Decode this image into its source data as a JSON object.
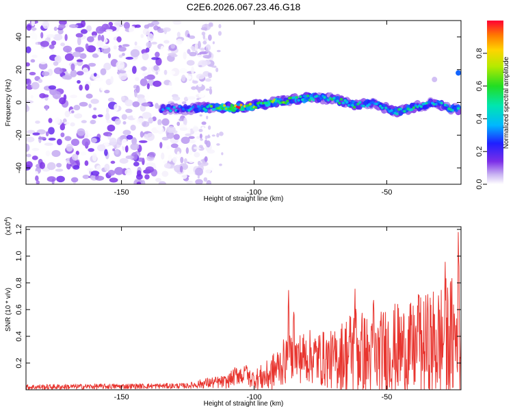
{
  "title": "C2E6.2026.067.23.46.G18",
  "chart_data": [
    {
      "type": "heatmap",
      "xlabel": "Height of straight line (km)",
      "ylabel": "Frequency (Hz)",
      "xlim": [
        -186,
        -22
      ],
      "ylim": [
        -50,
        50
      ],
      "xticks": [
        -150,
        -100,
        -50
      ],
      "yticks": [
        -40,
        -20,
        0,
        20,
        40
      ],
      "colorbar": {
        "label": "Normalized spectral amplitude",
        "range": [
          0,
          1
        ],
        "ticks": [
          "0.0",
          "0.2",
          "0.4",
          "0.6",
          "0.8"
        ],
        "tick_values": [
          0,
          0.2,
          0.4,
          0.6,
          0.8
        ]
      },
      "noise_region_x": [
        -186,
        -120
      ],
      "signal_track": [
        {
          "x": -135,
          "f": -4,
          "amp": 0.35
        },
        {
          "x": -125,
          "f": -4,
          "amp": 0.4
        },
        {
          "x": -115,
          "f": -3,
          "amp": 0.6
        },
        {
          "x": -108,
          "f": -3,
          "amp": 0.95
        },
        {
          "x": -100,
          "f": -2,
          "amp": 0.75
        },
        {
          "x": -92,
          "f": 0,
          "amp": 0.65
        },
        {
          "x": -85,
          "f": 2,
          "amp": 0.6
        },
        {
          "x": -78,
          "f": 3,
          "amp": 0.55
        },
        {
          "x": -70,
          "f": 2,
          "amp": 0.5
        },
        {
          "x": -62,
          "f": -2,
          "amp": 0.55
        },
        {
          "x": -55,
          "f": 0,
          "amp": 0.4
        },
        {
          "x": -47,
          "f": -6,
          "amp": 0.55
        },
        {
          "x": -40,
          "f": -3,
          "amp": 0.5
        },
        {
          "x": -32,
          "f": 0,
          "amp": 0.45
        },
        {
          "x": -25,
          "f": -4,
          "amp": 0.5
        }
      ],
      "extra_features": [
        {
          "x": -23,
          "f": 18,
          "amp": 0.3
        },
        {
          "x": -32,
          "f": 14,
          "amp": 0.05
        }
      ]
    },
    {
      "type": "line",
      "xlabel": "Height of straight line (km)",
      "ylabel": "SNR (10 * v/v)",
      "multiplier": "(x10",
      "multiplier_exp": "4",
      "multiplier_close": ")",
      "xlim": [
        -186,
        -22
      ],
      "ylim": [
        0,
        1.22
      ],
      "xticks": [
        -150,
        -100,
        -50
      ],
      "yticks": [
        "0.2",
        "0.4",
        "0.6",
        "0.8",
        "1.0",
        "1.2"
      ],
      "ytick_values": [
        0.2,
        0.4,
        0.6,
        0.8,
        1.0,
        1.2
      ],
      "color": "#e8352f",
      "envelope": [
        {
          "x": -186,
          "base": 0.02,
          "amp": 0.02
        },
        {
          "x": -125,
          "base": 0.03,
          "amp": 0.02
        },
        {
          "x": -118,
          "base": 0.05,
          "amp": 0.04
        },
        {
          "x": -110,
          "base": 0.06,
          "amp": 0.05
        },
        {
          "x": -106,
          "base": 0.12,
          "amp": 0.08
        },
        {
          "x": -100,
          "base": 0.08,
          "amp": 0.07
        },
        {
          "x": -95,
          "base": 0.1,
          "amp": 0.12
        },
        {
          "x": -88,
          "base": 0.22,
          "amp": 0.18
        },
        {
          "x": -80,
          "base": 0.25,
          "amp": 0.2
        },
        {
          "x": -70,
          "base": 0.22,
          "amp": 0.22
        },
        {
          "x": -62,
          "base": 0.3,
          "amp": 0.35
        },
        {
          "x": -55,
          "base": 0.22,
          "amp": 0.3
        },
        {
          "x": -50,
          "base": 0.3,
          "amp": 0.35
        },
        {
          "x": -40,
          "base": 0.3,
          "amp": 0.35
        },
        {
          "x": -30,
          "base": 0.35,
          "amp": 0.45
        },
        {
          "x": -22,
          "base": 0.4,
          "amp": 0.5
        }
      ],
      "peaks": [
        {
          "x": -109,
          "y": 0.06
        },
        {
          "x": -103,
          "y": 0.2
        },
        {
          "x": -87,
          "y": 0.75
        },
        {
          "x": -85,
          "y": 0.68
        },
        {
          "x": -62,
          "y": 0.8
        },
        {
          "x": -55,
          "y": 0.72
        },
        {
          "x": -38,
          "y": 0.78
        },
        {
          "x": -28,
          "y": 0.97
        },
        {
          "x": -23,
          "y": 1.22
        }
      ]
    }
  ]
}
